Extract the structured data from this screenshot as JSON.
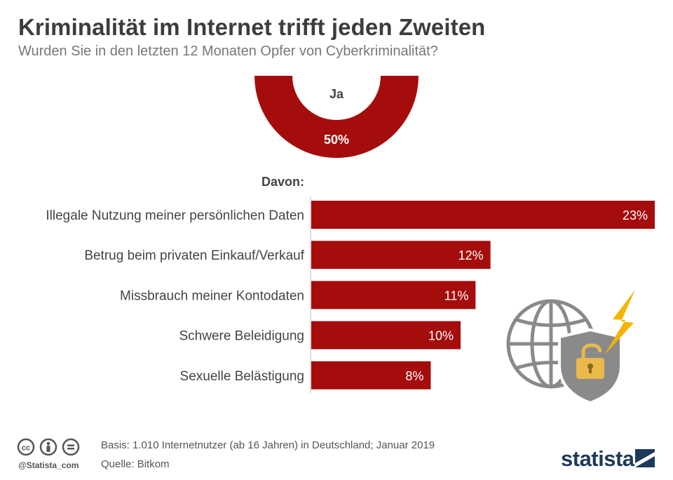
{
  "header": {
    "title": "Kriminalität im Internet trifft jeden Zweiten",
    "subtitle": "Wurden Sie in den letzten 12 Monaten Opfer von Cyberkriminalität?"
  },
  "colors": {
    "accent": "#a50c0c",
    "text": "#333333",
    "muted": "#777777",
    "icon_gray": "#8a8a8a",
    "bolt": "#f5b400",
    "lock": "#e9b94a",
    "brand": "#1d3a5c"
  },
  "chart_data": [
    {
      "type": "pie",
      "variant": "donut",
      "slices": [
        {
          "label": "Ja",
          "value": 50,
          "value_label": "50%"
        }
      ]
    },
    {
      "type": "bar",
      "orientation": "horizontal",
      "heading": "Davon:",
      "categories": [
        "Illegale Nutzung meiner persönlichen Daten",
        "Betrug beim privaten Einkauf/Verkauf",
        "Missbrauch meiner Kontodaten",
        "Schwere Beleidigung",
        "Sexuelle Belästigung"
      ],
      "values": [
        23,
        12,
        11,
        10,
        8
      ],
      "value_labels": [
        "23%",
        "12%",
        "11%",
        "10%",
        "8%"
      ],
      "unit": "%",
      "xlim": [
        0,
        23
      ]
    }
  ],
  "illustration": {
    "icons": [
      "globe-icon",
      "shield-icon",
      "padlock-icon",
      "lightning-icon"
    ]
  },
  "footer": {
    "basis": "Basis: 1.010 Internetnutzer (ab 16 Jahren) in Deutschland; Januar 2019",
    "source": "Quelle: Bitkom",
    "handle": "@Statista_com",
    "license_icons": [
      "cc-icon",
      "by-icon",
      "nd-icon"
    ],
    "brand": "statista"
  }
}
